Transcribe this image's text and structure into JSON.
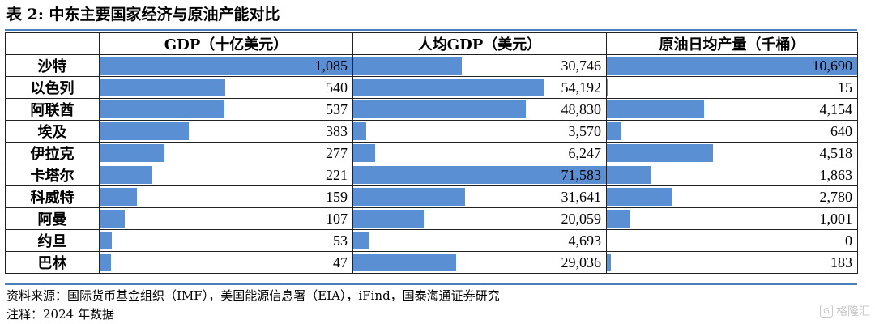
{
  "title": "表 2:  中东主要国家经济与原油产能对比",
  "columns": [
    "GDP（十亿美元）",
    "人均GDP（美元）",
    "原油日均产量（千桶）"
  ],
  "bar_color": "#5b8fd4",
  "rule_color": "#4a7ebb",
  "rows": [
    {
      "country": "沙特",
      "gdp": "1,085",
      "gdp_pc": "30,746",
      "oil": "10,690"
    },
    {
      "country": "以色列",
      "gdp": "540",
      "gdp_pc": "54,192",
      "oil": "15"
    },
    {
      "country": "阿联酋",
      "gdp": "537",
      "gdp_pc": "48,830",
      "oil": "4,154"
    },
    {
      "country": "埃及",
      "gdp": "383",
      "gdp_pc": "3,570",
      "oil": "640"
    },
    {
      "country": "伊拉克",
      "gdp": "277",
      "gdp_pc": "6,247",
      "oil": "4,518"
    },
    {
      "country": "卡塔尔",
      "gdp": "221",
      "gdp_pc": "71,583",
      "oil": "1,863"
    },
    {
      "country": "科威特",
      "gdp": "159",
      "gdp_pc": "31,641",
      "oil": "2,780"
    },
    {
      "country": "阿曼",
      "gdp": "107",
      "gdp_pc": "20,059",
      "oil": "1,001"
    },
    {
      "country": "约旦",
      "gdp": "53",
      "gdp_pc": "4,693",
      "oil": "0"
    },
    {
      "country": "巴林",
      "gdp": "47",
      "gdp_pc": "29,036",
      "oil": "183"
    }
  ],
  "source": "资料来源：国际货币基金组织（IMF），美国能源信息署（EIA），iFind，国泰海通证券研究",
  "note": "注释：2024 年数据",
  "watermark": "格隆汇"
}
